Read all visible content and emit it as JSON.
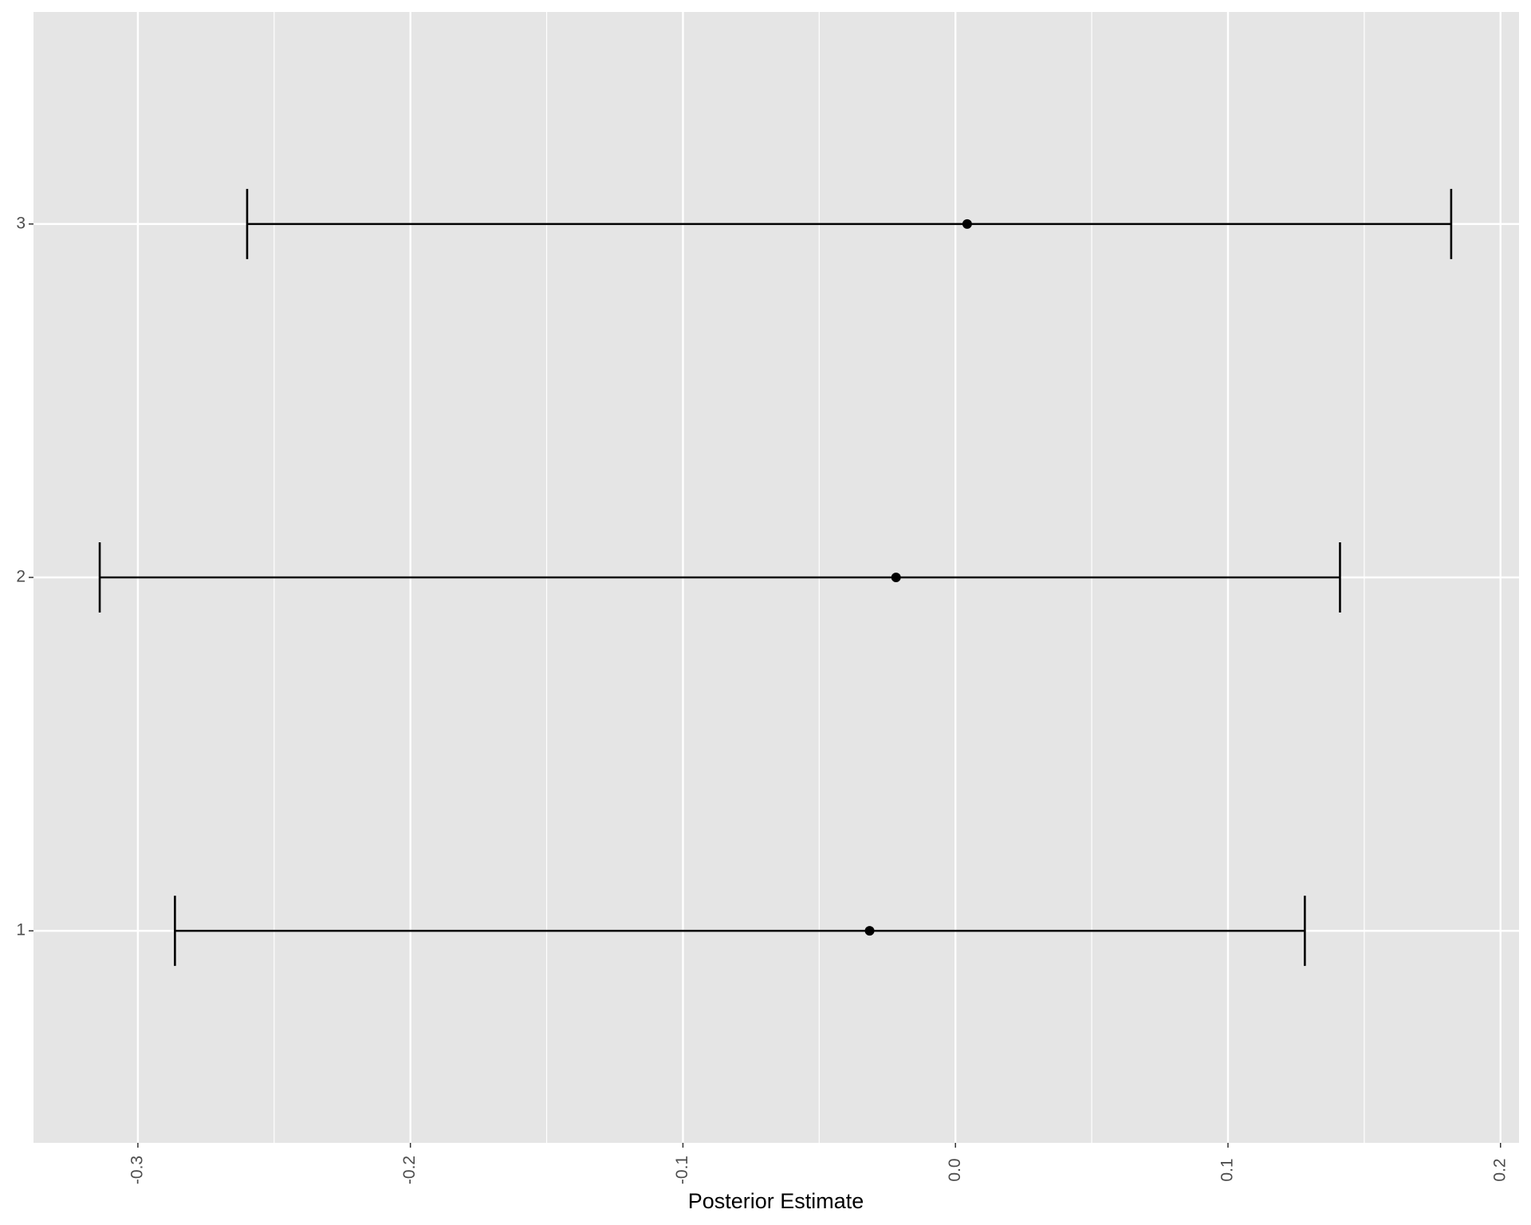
{
  "chart_data": {
    "type": "errorbar",
    "x_label": "Posterior Estimate",
    "categories": [
      "1",
      "2",
      "3"
    ],
    "estimates": [
      -0.0315,
      -0.0218,
      0.0043
    ],
    "lower": [
      -0.2864,
      -0.314,
      -0.2599
    ],
    "upper": [
      0.1282,
      0.1411,
      0.1819
    ],
    "color": "#000000",
    "xlim": [
      -0.3383,
      0.2068
    ],
    "xticks": [
      -0.3,
      -0.2,
      -0.1,
      {
        "value": 0,
        "label": "0.0"
      },
      0.1,
      0.2
    ],
    "xminorticks": [
      -0.25,
      -0.15,
      -0.05,
      0.05,
      0.15
    ],
    "ylim": [
      0.4,
      3.6
    ],
    "grid": true,
    "panel_color": "#e5e5e5"
  }
}
